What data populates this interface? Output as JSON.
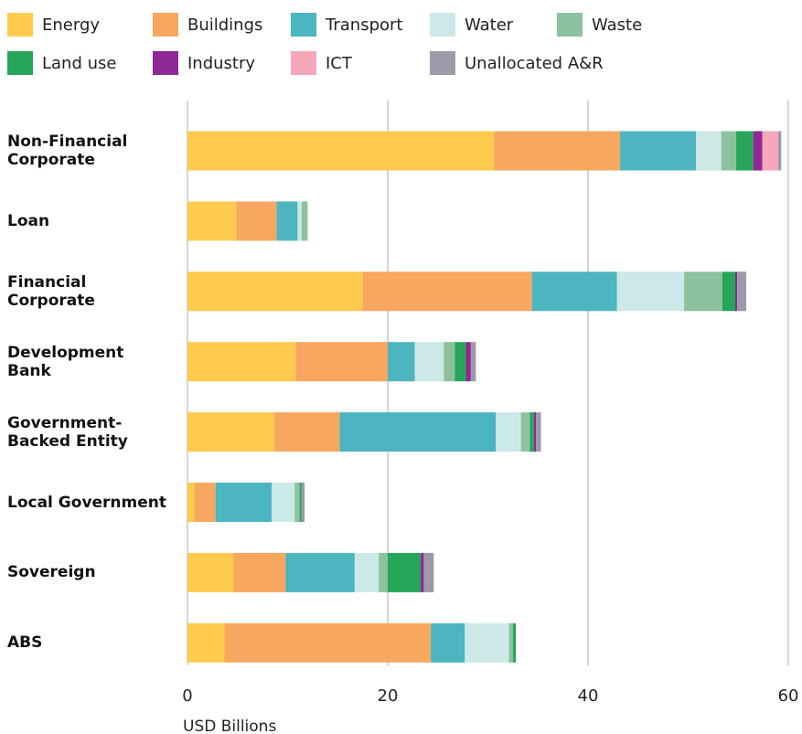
{
  "chart_data": {
    "type": "stacked_barh",
    "categories": [
      "Non-Financial\nCorporate",
      "Loan",
      "Financial\nCorporate",
      "Development\nBank",
      "Government-\nBacked Entity",
      "Local Government",
      "Sovereign",
      "ABS"
    ],
    "series": [
      {
        "name": "Energy",
        "color": "#fecb4f",
        "values": [
          30.6,
          4.9,
          17.5,
          10.8,
          8.7,
          0.7,
          4.6,
          3.7
        ]
      },
      {
        "name": "Buildings",
        "color": "#f8a760",
        "values": [
          12.6,
          4.0,
          16.9,
          9.2,
          6.5,
          2.1,
          5.2,
          20.6
        ]
      },
      {
        "name": "Transport",
        "color": "#4cb5c0",
        "values": [
          7.6,
          2.1,
          8.5,
          2.7,
          15.6,
          5.6,
          6.9,
          3.4
        ]
      },
      {
        "name": "Water",
        "color": "#cde9e7",
        "values": [
          2.5,
          0.4,
          6.7,
          2.9,
          2.5,
          2.3,
          2.4,
          4.4
        ]
      },
      {
        "name": "Waste",
        "color": "#8ec19d",
        "values": [
          1.5,
          0.6,
          3.8,
          1.1,
          0.9,
          0.5,
          0.9,
          0.4
        ]
      },
      {
        "name": "Land use",
        "color": "#27a55a",
        "values": [
          1.7,
          0,
          1.3,
          1.1,
          0.4,
          0.2,
          3.3,
          0.3
        ]
      },
      {
        "name": "Industry",
        "color": "#8f2795",
        "values": [
          0.9,
          0,
          0.2,
          0.5,
          0.2,
          0,
          0.3,
          0
        ]
      },
      {
        "name": "ICT",
        "color": "#f6a8bb",
        "values": [
          1.6,
          0,
          0,
          0,
          0,
          0,
          0,
          0
        ]
      },
      {
        "name": "Unallocated A&R",
        "color": "#9b9aa8",
        "values": [
          0.3,
          0,
          0.9,
          0.5,
          0.5,
          0.3,
          1.0,
          0
        ]
      }
    ],
    "xlim": [
      0,
      60
    ],
    "xticks": [
      0,
      20,
      40,
      60
    ],
    "xlabel": "USD Billions",
    "grid": true
  }
}
